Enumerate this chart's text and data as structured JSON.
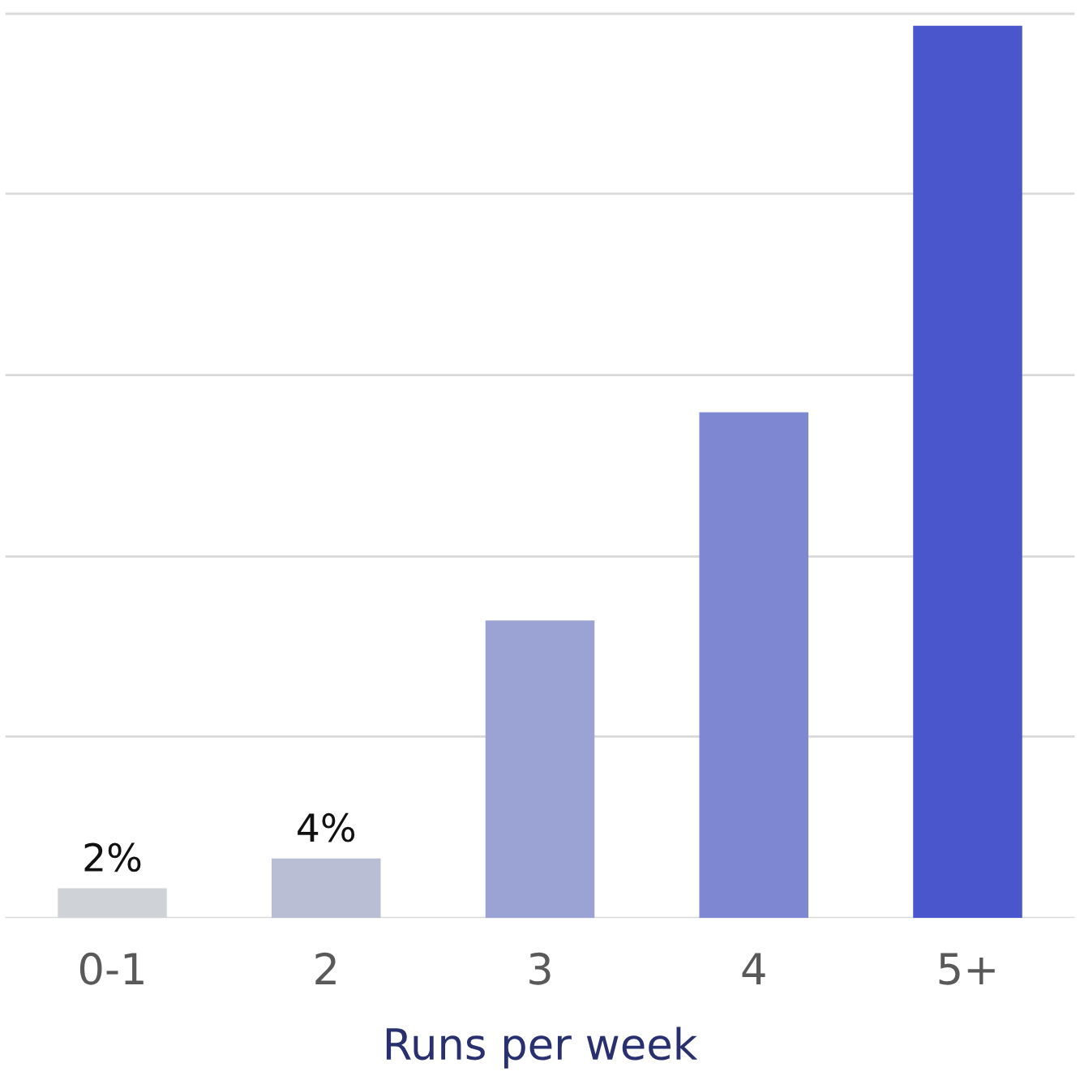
{
  "chart_data": {
    "type": "bar",
    "xlabel": "Runs per week",
    "categories": [
      "0-1",
      "2",
      "3",
      "4",
      "5+"
    ],
    "values": [
      2,
      4,
      20,
      34,
      60
    ],
    "value_labels": [
      "2%",
      "4%",
      null,
      null,
      null
    ],
    "colors": [
      "#cfd2d6",
      "#b9bed4",
      "#9aa3d4",
      "#7e87d2",
      "#4a57cc"
    ],
    "ylim": [
      0,
      61
    ],
    "yticks": [
      {
        "value": 0,
        "label": null
      },
      {
        "value": 12.2,
        "label": null
      },
      {
        "value": 24.3,
        "label": null
      },
      {
        "value": 36.5,
        "label": null
      },
      {
        "value": 48.7,
        "label": null
      },
      {
        "value": 60.8,
        "label": null
      }
    ],
    "grid": "y"
  }
}
